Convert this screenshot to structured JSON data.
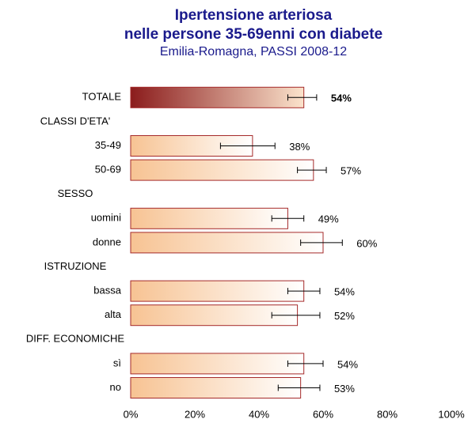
{
  "chart_data": {
    "type": "bar",
    "orientation": "horizontal",
    "title": "Ipertensione arteriosa",
    "title2": "nelle persone 35-69enni con diabete",
    "subtitle": "Emilia-Romagna, PASSI 2008-12",
    "categories": [
      "TOTALE",
      "CLASSI D'ETA'",
      "35-49",
      "50-69",
      "SESSO",
      "uomini",
      "donne",
      "ISTRUZIONE",
      "bassa",
      "alta",
      "DIFF. ECONOMICHE",
      "sì",
      "no"
    ],
    "values": [
      54,
      null,
      38,
      57,
      null,
      49,
      60,
      null,
      54,
      52,
      null,
      54,
      53
    ],
    "value_labels": [
      "54%",
      null,
      "38%",
      "57%",
      null,
      "49%",
      "60%",
      null,
      "54%",
      "52%",
      null,
      "54%",
      "53%"
    ],
    "ci_low": [
      49,
      null,
      28,
      52,
      null,
      44,
      53,
      null,
      49,
      44,
      null,
      49,
      46
    ],
    "ci_high": [
      58,
      null,
      45,
      61,
      null,
      54,
      66,
      null,
      59,
      59,
      null,
      60,
      59
    ],
    "colors": {
      "total": "#8b1c1c",
      "bar": "#f7c393",
      "border": "#a52a2a"
    },
    "xlim": [
      0,
      100
    ],
    "xticks": [
      {
        "value": 0,
        "label": "0%"
      },
      {
        "value": 20,
        "label": "20%"
      },
      {
        "value": 40,
        "label": "40%"
      },
      {
        "value": 60,
        "label": "60%"
      },
      {
        "value": 80,
        "label": "80%"
      },
      {
        "value": 100,
        "label": "100%"
      }
    ]
  }
}
